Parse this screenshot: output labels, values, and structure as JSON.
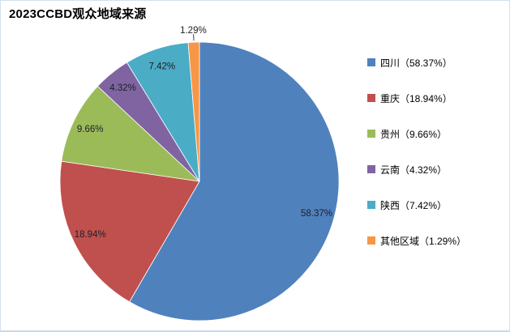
{
  "title": "2023CCBD观众地域来源",
  "chart_data": {
    "type": "pie",
    "title": "2023CCBD观众地域来源",
    "start_angle_deg": 0,
    "direction": "clockwise",
    "legend_position": "right",
    "slices": [
      {
        "name": "四川",
        "slug": "sichuan",
        "value": 58.37,
        "label": "58.37%",
        "color": "#4F81BD"
      },
      {
        "name": "重庆",
        "slug": "chongqing",
        "value": 18.94,
        "label": "18.94%",
        "color": "#C0504D"
      },
      {
        "name": "贵州",
        "slug": "guizhou",
        "value": 9.66,
        "label": "9.66%",
        "color": "#9BBB59"
      },
      {
        "name": "云南",
        "slug": "yunnan",
        "value": 4.32,
        "label": "4.32%",
        "color": "#8064A2"
      },
      {
        "name": "陕西",
        "slug": "shaanxi",
        "value": 7.42,
        "label": "7.42%",
        "color": "#4BACC6"
      },
      {
        "name": "其他区域",
        "slug": "other-regions",
        "value": 1.29,
        "label": "1.29%",
        "color": "#F79646"
      }
    ]
  },
  "legend": {
    "items": [
      {
        "label": "四川（58.37%）"
      },
      {
        "label": "重庆（18.94%）"
      },
      {
        "label": "贵州（9.66%）"
      },
      {
        "label": "云南（4.32%）"
      },
      {
        "label": "陕西（7.42%）"
      },
      {
        "label": "其他区域（1.29%）"
      }
    ]
  },
  "colors": {
    "slice_label_text": "#1d1f29",
    "title_text": "#000000",
    "frame_border": "#d3e1f1",
    "slice_stroke": "#ffffff",
    "leader_line": "#404040"
  }
}
